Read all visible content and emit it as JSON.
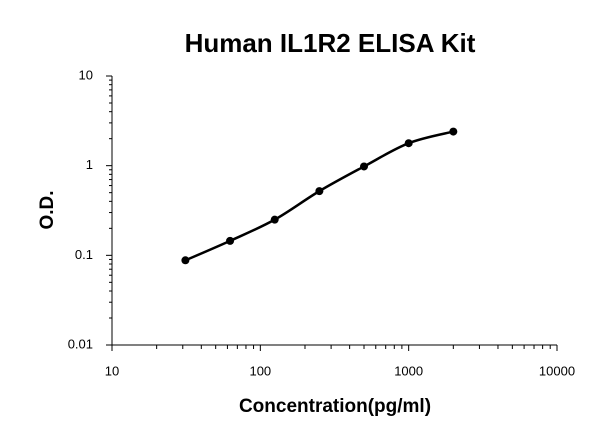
{
  "chart_data": {
    "type": "scatter",
    "title": "Human IL1R2 ELISA Kit",
    "x_label": "Concentration(pg/ml)",
    "y_label": "O.D.",
    "x": [
      31.25,
      62.5,
      125,
      250,
      500,
      1000,
      2000
    ],
    "values": [
      0.088,
      0.145,
      0.25,
      0.52,
      0.98,
      1.78,
      2.4
    ],
    "color": "#000000",
    "xscale": "log",
    "yscale": "log",
    "xlim": [
      10,
      10000
    ],
    "xticks": [
      10,
      100,
      1000,
      10000
    ],
    "ylim": [
      0.01,
      10
    ],
    "yticks": [
      0.01,
      0.1,
      1,
      10
    ]
  }
}
